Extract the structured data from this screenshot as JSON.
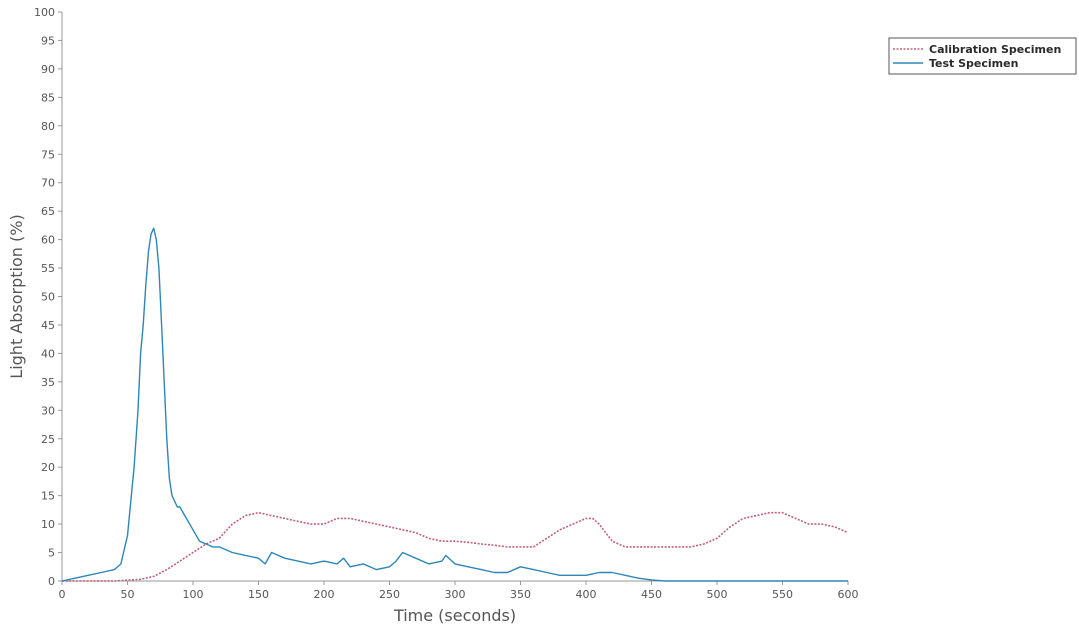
{
  "chart_data": {
    "type": "line",
    "title": "",
    "xlabel": "Time (seconds)",
    "ylabel": "Light Absorption (%)",
    "xlim": [
      0,
      600
    ],
    "ylim": [
      0,
      100
    ],
    "x_ticks": [
      0,
      50,
      100,
      150,
      200,
      250,
      300,
      350,
      400,
      450,
      500,
      550,
      600
    ],
    "y_ticks": [
      0,
      5,
      10,
      15,
      20,
      25,
      30,
      35,
      40,
      45,
      50,
      55,
      60,
      65,
      70,
      75,
      80,
      85,
      90,
      95,
      100
    ],
    "grid": false,
    "legend_position": "top-right",
    "series": [
      {
        "name": "Calibration Specimen",
        "color": "#c0607a",
        "style": "dotted",
        "x": [
          0,
          40,
          60,
          70,
          80,
          90,
          100,
          110,
          120,
          130,
          140,
          150,
          160,
          170,
          180,
          190,
          200,
          210,
          220,
          230,
          240,
          250,
          260,
          270,
          280,
          290,
          300,
          310,
          320,
          330,
          340,
          350,
          360,
          370,
          380,
          390,
          400,
          405,
          410,
          420,
          430,
          440,
          450,
          460,
          470,
          480,
          490,
          500,
          510,
          520,
          530,
          540,
          550,
          560,
          570,
          580,
          590,
          600
        ],
        "y": [
          0,
          0,
          0.3,
          0.8,
          2,
          3.5,
          5,
          6.5,
          7.5,
          10,
          11.5,
          12,
          11.5,
          11,
          10.5,
          10,
          10,
          11,
          11,
          10.5,
          10,
          9.5,
          9,
          8.5,
          7.5,
          7,
          7,
          6.8,
          6.5,
          6.3,
          6,
          6,
          6,
          7.5,
          9,
          10,
          11,
          11,
          10,
          7,
          6,
          6,
          6,
          6,
          6,
          6,
          6.5,
          7.5,
          9.5,
          11,
          11.5,
          12,
          12,
          11,
          10,
          10,
          9.5,
          8.5
        ]
      },
      {
        "name": "Test Specimen",
        "color": "#2e86b8",
        "style": "solid",
        "x": [
          0,
          10,
          20,
          30,
          40,
          45,
          50,
          55,
          58,
          60,
          62,
          64,
          66,
          68,
          70,
          72,
          74,
          76,
          78,
          80,
          82,
          84,
          86,
          88,
          90,
          95,
          100,
          105,
          110,
          115,
          120,
          130,
          140,
          150,
          155,
          160,
          170,
          180,
          190,
          200,
          210,
          215,
          220,
          230,
          240,
          250,
          255,
          260,
          270,
          280,
          290,
          293,
          300,
          310,
          320,
          330,
          340,
          350,
          360,
          370,
          380,
          390,
          400,
          410,
          420,
          430,
          440,
          450,
          460,
          500,
          550,
          600
        ],
        "y": [
          0,
          0.5,
          1,
          1.5,
          2,
          3,
          8,
          20,
          30,
          40,
          45,
          52,
          58,
          61,
          62,
          60,
          55,
          45,
          35,
          25,
          18,
          15,
          14,
          13,
          13,
          11,
          9,
          7,
          6.5,
          6,
          6,
          5,
          4.5,
          4,
          3,
          5,
          4,
          3.5,
          3,
          3.5,
          3,
          4,
          2.5,
          3,
          2,
          2.5,
          3.5,
          5,
          4,
          3,
          3.5,
          4.5,
          3,
          2.5,
          2,
          1.5,
          1.5,
          2.5,
          2,
          1.5,
          1,
          1,
          1,
          1.5,
          1.5,
          1,
          0.5,
          0.2,
          0,
          0,
          0,
          0
        ]
      }
    ]
  }
}
